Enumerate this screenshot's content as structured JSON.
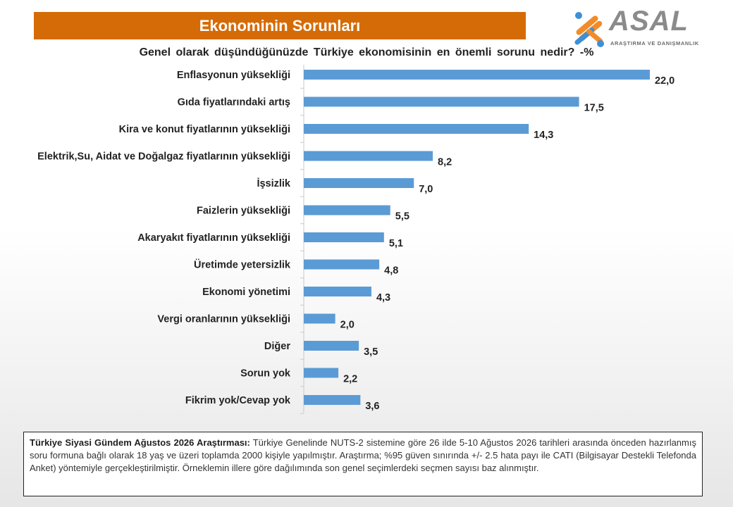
{
  "header": {
    "title": "Ekonominin Sorunları"
  },
  "logo": {
    "name": "ASAL",
    "tagline": "ARAŞTIRMA VE DANIŞMANLIK"
  },
  "chart_data": {
    "type": "bar",
    "orientation": "horizontal",
    "title": "Genel olarak düşündüğünüzde  Türkiye ekonomisinin  en önemli sorunu  nedir? -%",
    "categories": [
      "Enflasyonun yüksekliği",
      "Gıda fiyatlarındaki artış",
      "Kira ve konut fiyatlarının yüksekliği",
      "Elektrik,Su, Aidat ve Doğalgaz fiyatlarının yüksekliği",
      "İşsizlik",
      "Faizlerin yüksekliği",
      "Akaryakıt fiyatlarının yüksekliği",
      "Üretimde yetersizlik",
      "Ekonomi yönetimi",
      "Vergi oranlarının yüksekliği",
      "Diğer",
      "Sorun yok",
      "Fikrim yok/Cevap yok"
    ],
    "values": [
      22.0,
      17.5,
      14.3,
      8.2,
      7.0,
      5.5,
      5.1,
      4.8,
      4.3,
      2.0,
      3.5,
      2.2,
      3.6
    ],
    "data_labels": [
      "22,0",
      "17,5",
      "14,3",
      "8,2",
      "7,0",
      "5,5",
      "5,1",
      "4,8",
      "4,3",
      "2,0",
      "3,5",
      "2,2",
      "3,6"
    ],
    "xlim": [
      0,
      22.0
    ],
    "bar_color": "#5b9bd5",
    "grid": false,
    "legend": "none"
  },
  "note": {
    "bold": "Türkiye Siyasi Gündem Ağustos 2026 Araştırması:",
    "text": " Türkiye Genelinde NUTS-2 sistemine göre 26 ilde 5-10 Ağustos 2026 tarihleri arasında önceden hazırlanmış soru formuna bağlı olarak 18 yaş ve üzeri toplamda 2000 kişiyle yapılmıştır. Araştırma; %95 güven sınırında +/- 2.5 hata payı ile CATI (Bilgisayar Destekli Telefonda  Anket) yöntemiyle gerçekleştirilmiştir. Örneklemin illere göre dağılımında son genel seçimlerdeki seçmen sayısı baz alınmıştır."
  },
  "colors": {
    "banner": "#d56b06",
    "bar": "#5b9bd5",
    "logo_orange": "#f28c28",
    "logo_blue": "#3d8fd8"
  }
}
